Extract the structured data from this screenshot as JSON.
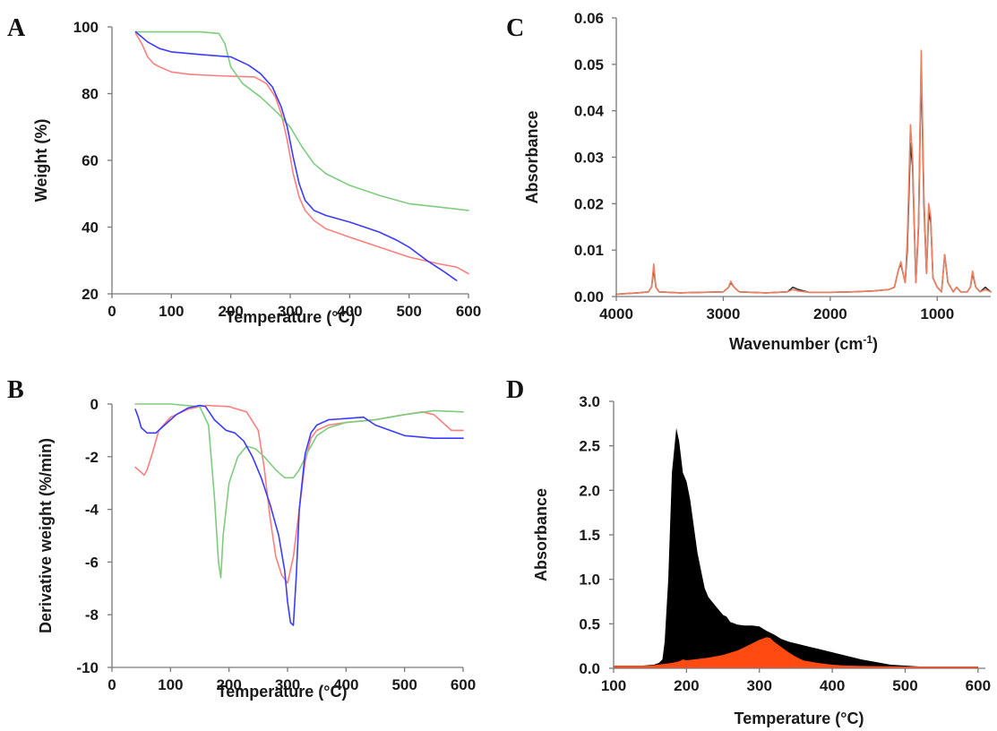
{
  "panels": {
    "A": {
      "letter": "A"
    },
    "B": {
      "letter": "B"
    },
    "C": {
      "letter": "C"
    },
    "D": {
      "letter": "D"
    }
  },
  "colors": {
    "red": "#ff7f7f",
    "green": "#7fcc7f",
    "blue": "#3c3cff",
    "ftir_dark": "#333333",
    "ftir_orange": "#f08060",
    "area_black": "#000000",
    "area_orange": "#ff4a12"
  },
  "chart_data": [
    {
      "id": "A",
      "type": "line",
      "xlabel": "Temperature (°C)",
      "ylabel": "Weight (%)",
      "xlim": [
        0,
        600
      ],
      "ylim": [
        20,
        100
      ],
      "xticks": [
        0,
        100,
        200,
        300,
        400,
        500,
        600
      ],
      "yticks": [
        20,
        40,
        60,
        80,
        100
      ],
      "grid": false,
      "series": [
        {
          "color": "#ff7f7f",
          "x": [
            40,
            50,
            60,
            70,
            80,
            100,
            130,
            160,
            200,
            240,
            260,
            275,
            285,
            295,
            305,
            315,
            325,
            340,
            360,
            400,
            450,
            500,
            550,
            580,
            600
          ],
          "y": [
            98,
            95,
            91,
            89,
            88,
            86.5,
            85.8,
            85.5,
            85.2,
            85,
            83,
            79,
            74,
            66,
            56,
            49,
            45,
            42,
            39.5,
            37,
            34,
            31,
            29,
            28,
            26
          ]
        },
        {
          "color": "#7fcc7f",
          "x": [
            40,
            100,
            150,
            180,
            190,
            200,
            220,
            250,
            280,
            300,
            320,
            340,
            360,
            400,
            450,
            500,
            550,
            600
          ],
          "y": [
            98.5,
            98.5,
            98.5,
            98,
            95,
            88,
            83,
            79,
            74,
            70,
            64,
            59,
            56,
            52.5,
            49.5,
            47,
            46,
            45
          ]
        },
        {
          "color": "#3c3cff",
          "x": [
            40,
            50,
            60,
            80,
            100,
            150,
            200,
            230,
            250,
            270,
            285,
            295,
            305,
            315,
            325,
            340,
            360,
            400,
            450,
            480,
            500,
            530,
            560,
            580
          ],
          "y": [
            98.5,
            97,
            95.5,
            93.5,
            92.5,
            91.7,
            91,
            88.5,
            86,
            82,
            76,
            70,
            61,
            53,
            48,
            45,
            43.5,
            41.5,
            38.5,
            36,
            34,
            30,
            26.5,
            24
          ]
        }
      ]
    },
    {
      "id": "B",
      "type": "line",
      "xlabel": "Temperature (°C)",
      "ylabel": "Derivative weight (%/min)",
      "xlim": [
        0,
        600
      ],
      "ylim": [
        -10,
        0
      ],
      "xticks": [
        0,
        100,
        200,
        300,
        400,
        500,
        600
      ],
      "yticks": [
        0,
        -2,
        -4,
        -6,
        -8,
        -10
      ],
      "grid": false,
      "series": [
        {
          "color": "#ff7f7f",
          "x": [
            40,
            50,
            55,
            60,
            70,
            80,
            100,
            130,
            160,
            200,
            230,
            250,
            260,
            270,
            280,
            290,
            300,
            310,
            320,
            330,
            340,
            350,
            370,
            400,
            450,
            500,
            530,
            550,
            570,
            580,
            600
          ],
          "y": [
            -2.4,
            -2.6,
            -2.7,
            -2.5,
            -1.8,
            -1.0,
            -0.5,
            -0.2,
            -0.05,
            -0.1,
            -0.3,
            -1.0,
            -2.4,
            -4.3,
            -5.8,
            -6.5,
            -6.8,
            -5.8,
            -4.0,
            -2.2,
            -1.3,
            -1.0,
            -0.8,
            -0.7,
            -0.6,
            -0.4,
            -0.3,
            -0.4,
            -0.8,
            -1.0,
            -1.0
          ]
        },
        {
          "color": "#7fcc7f",
          "x": [
            40,
            100,
            150,
            165,
            175,
            182,
            186,
            190,
            200,
            215,
            230,
            245,
            260,
            280,
            295,
            310,
            320,
            335,
            350,
            370,
            400,
            450,
            500,
            550,
            600
          ],
          "y": [
            0,
            0,
            -0.1,
            -0.8,
            -3.5,
            -6.0,
            -6.6,
            -5.0,
            -3.0,
            -2.0,
            -1.6,
            -1.7,
            -2.0,
            -2.5,
            -2.8,
            -2.8,
            -2.5,
            -1.8,
            -1.2,
            -0.9,
            -0.7,
            -0.6,
            -0.4,
            -0.25,
            -0.3
          ]
        },
        {
          "color": "#3c3cff",
          "x": [
            40,
            45,
            50,
            60,
            75,
            90,
            110,
            130,
            150,
            160,
            175,
            195,
            210,
            225,
            240,
            255,
            270,
            285,
            295,
            300,
            305,
            310,
            315,
            320,
            330,
            340,
            350,
            370,
            400,
            430,
            450,
            500,
            550,
            600
          ],
          "y": [
            -0.2,
            -0.5,
            -0.9,
            -1.1,
            -1.1,
            -0.8,
            -0.4,
            -0.15,
            -0.05,
            -0.1,
            -0.6,
            -1.0,
            -1.1,
            -1.4,
            -2.0,
            -2.8,
            -3.8,
            -5.0,
            -6.3,
            -7.5,
            -8.3,
            -8.4,
            -6.5,
            -4.0,
            -1.9,
            -1.1,
            -0.8,
            -0.6,
            -0.55,
            -0.5,
            -0.8,
            -1.2,
            -1.3,
            -1.3
          ]
        }
      ]
    },
    {
      "id": "C",
      "type": "line",
      "xlabel": "Wavenumber (cm-1)",
      "ylabel": "Absorbance",
      "xlim": [
        4000,
        500
      ],
      "ylim": [
        0,
        0.06
      ],
      "xticks": [
        4000,
        3000,
        2000,
        1000
      ],
      "yticks": [
        0.0,
        0.01,
        0.02,
        0.03,
        0.04,
        0.05,
        0.06
      ],
      "grid": false,
      "series": [
        {
          "color": "#333333",
          "x": [
            4000,
            3800,
            3700,
            3670,
            3650,
            3630,
            3600,
            3400,
            3000,
            2950,
            2930,
            2900,
            2850,
            2600,
            2400,
            2350,
            2300,
            2200,
            2000,
            1800,
            1600,
            1450,
            1400,
            1360,
            1340,
            1320,
            1300,
            1280,
            1250,
            1230,
            1200,
            1175,
            1150,
            1125,
            1100,
            1080,
            1060,
            1040,
            1000,
            960,
            930,
            900,
            850,
            820,
            780,
            720,
            690,
            670,
            640,
            600,
            550,
            500
          ],
          "y": [
            0.0005,
            0.0008,
            0.001,
            0.002,
            0.006,
            0.002,
            0.001,
            0.0008,
            0.001,
            0.002,
            0.003,
            0.002,
            0.001,
            0.0008,
            0.001,
            0.002,
            0.0015,
            0.0009,
            0.0009,
            0.001,
            0.0012,
            0.0015,
            0.002,
            0.006,
            0.007,
            0.005,
            0.003,
            0.01,
            0.033,
            0.028,
            0.003,
            0.015,
            0.05,
            0.02,
            0.005,
            0.018,
            0.016,
            0.004,
            0.002,
            0.001,
            0.009,
            0.003,
            0.001,
            0.002,
            0.001,
            0.001,
            0.002,
            0.005,
            0.002,
            0.001,
            0.002,
            0.001
          ]
        },
        {
          "color": "#f08060",
          "x": [
            4000,
            3800,
            3700,
            3670,
            3650,
            3630,
            3600,
            3400,
            3000,
            2950,
            2930,
            2900,
            2850,
            2600,
            2400,
            2350,
            2300,
            2200,
            2000,
            1800,
            1600,
            1450,
            1400,
            1360,
            1340,
            1320,
            1300,
            1280,
            1250,
            1230,
            1200,
            1175,
            1150,
            1125,
            1100,
            1080,
            1060,
            1040,
            1000,
            960,
            930,
            900,
            850,
            820,
            780,
            720,
            690,
            670,
            640,
            600,
            550,
            500
          ],
          "y": [
            0.0005,
            0.0008,
            0.001,
            0.002,
            0.007,
            0.002,
            0.001,
            0.0008,
            0.001,
            0.002,
            0.0033,
            0.002,
            0.001,
            0.0008,
            0.001,
            0.0015,
            0.0012,
            0.0009,
            0.0009,
            0.001,
            0.0012,
            0.0015,
            0.002,
            0.006,
            0.0075,
            0.005,
            0.003,
            0.012,
            0.037,
            0.03,
            0.003,
            0.016,
            0.053,
            0.022,
            0.005,
            0.02,
            0.017,
            0.004,
            0.002,
            0.001,
            0.009,
            0.003,
            0.001,
            0.002,
            0.001,
            0.001,
            0.002,
            0.0055,
            0.002,
            0.001,
            0.0015,
            0.001
          ]
        }
      ]
    },
    {
      "id": "D",
      "type": "area",
      "xlabel": "Temperature (°C)",
      "ylabel": "Absorbance",
      "xlim": [
        100,
        610
      ],
      "ylim": [
        0,
        3.0
      ],
      "xticks": [
        100,
        200,
        300,
        400,
        500,
        600
      ],
      "yticks": [
        0.0,
        0.5,
        1.0,
        1.5,
        2.0,
        2.5,
        3.0
      ],
      "grid": false,
      "series": [
        {
          "color": "#000000",
          "x": [
            100,
            140,
            155,
            162,
            167,
            170,
            175,
            180,
            186,
            190,
            195,
            200,
            205,
            210,
            215,
            220,
            225,
            230,
            240,
            250,
            255,
            260,
            270,
            280,
            290,
            300,
            310,
            320,
            330,
            340,
            350,
            360,
            370,
            380,
            400,
            420,
            440,
            460,
            480,
            500,
            520,
            540,
            560,
            580,
            600
          ],
          "y": [
            0.03,
            0.03,
            0.04,
            0.06,
            0.1,
            0.3,
            1.0,
            2.2,
            2.7,
            2.55,
            2.2,
            2.1,
            1.9,
            1.6,
            1.3,
            1.1,
            0.9,
            0.8,
            0.7,
            0.6,
            0.58,
            0.52,
            0.49,
            0.48,
            0.48,
            0.47,
            0.42,
            0.38,
            0.33,
            0.3,
            0.28,
            0.26,
            0.24,
            0.22,
            0.18,
            0.14,
            0.1,
            0.07,
            0.04,
            0.03,
            0.02,
            0.02,
            0.02,
            0.02,
            0.02
          ]
        },
        {
          "color": "#ff4a12",
          "x": [
            100,
            150,
            170,
            180,
            190,
            195,
            200,
            210,
            230,
            250,
            270,
            280,
            290,
            300,
            310,
            315,
            320,
            330,
            340,
            350,
            360,
            380,
            400,
            420,
            450,
            500,
            550,
            600
          ],
          "y": [
            0.03,
            0.03,
            0.05,
            0.06,
            0.08,
            0.1,
            0.09,
            0.1,
            0.12,
            0.15,
            0.2,
            0.24,
            0.28,
            0.32,
            0.35,
            0.34,
            0.3,
            0.24,
            0.18,
            0.13,
            0.09,
            0.06,
            0.04,
            0.03,
            0.025,
            0.02,
            0.02,
            0.02
          ]
        }
      ]
    }
  ]
}
